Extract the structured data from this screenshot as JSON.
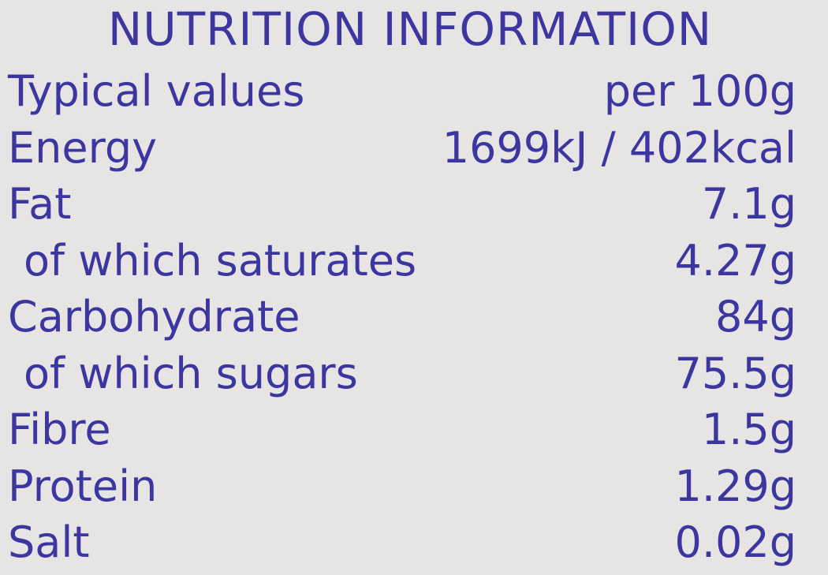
{
  "title": "NUTRITION INFORMATION",
  "header": {
    "label": "Typical values",
    "value": "per 100g"
  },
  "rows": [
    {
      "label": "Energy",
      "value": "1699kJ / 402kcal",
      "sub": false
    },
    {
      "label": "Fat",
      "value": "7.1g",
      "sub": false
    },
    {
      "label": "of which saturates",
      "value": "4.27g",
      "sub": true
    },
    {
      "label": "Carbohydrate",
      "value": "84g",
      "sub": false
    },
    {
      "label": "of which sugars",
      "value": "75.5g",
      "sub": true
    },
    {
      "label": "Fibre",
      "value": "1.5g",
      "sub": false
    },
    {
      "label": "Protein",
      "value": "1.29g",
      "sub": false
    },
    {
      "label": "Salt",
      "value": "0.02g",
      "sub": false
    }
  ],
  "colors": {
    "text": "#3d35a0",
    "background": "#e7e5e3"
  }
}
